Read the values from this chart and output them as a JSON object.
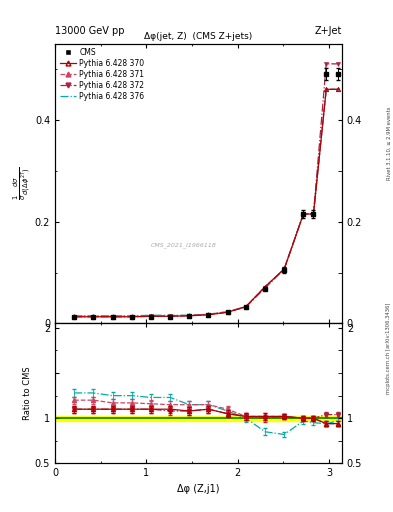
{
  "title_top_left": "13000 GeV pp",
  "title_top_right": "Z+Jet",
  "plot_title": "Δφ(jet, Z)  (CMS Z+jets)",
  "xlabel": "Δφ (Z,j1)",
  "ylabel_ratio": "Ratio to CMS",
  "watermark": "CMS_2021_I1966118",
  "right_label": "Rivet 3.1.10, ≥ 2.9M events",
  "right_label2": "mcplots.cern.ch [arXiv:1306.3436]",
  "cms_x": [
    0.21,
    0.42,
    0.63,
    0.84,
    1.05,
    1.26,
    1.47,
    1.68,
    1.89,
    2.09,
    2.3,
    2.51,
    2.72,
    2.83,
    2.97,
    3.1
  ],
  "cms_y": [
    0.012,
    0.012,
    0.012,
    0.012,
    0.013,
    0.013,
    0.014,
    0.016,
    0.022,
    0.033,
    0.068,
    0.105,
    0.215,
    0.215,
    0.49,
    0.49
  ],
  "cms_yerr": [
    0.0005,
    0.0005,
    0.0005,
    0.0005,
    0.0005,
    0.0005,
    0.0005,
    0.001,
    0.001,
    0.002,
    0.003,
    0.005,
    0.008,
    0.008,
    0.012,
    0.012
  ],
  "py370_y": [
    0.013,
    0.013,
    0.013,
    0.013,
    0.014,
    0.014,
    0.015,
    0.017,
    0.022,
    0.033,
    0.072,
    0.107,
    0.215,
    0.215,
    0.46,
    0.46
  ],
  "py371_y": [
    0.014,
    0.014,
    0.014,
    0.014,
    0.015,
    0.015,
    0.016,
    0.018,
    0.023,
    0.033,
    0.072,
    0.107,
    0.215,
    0.215,
    0.46,
    0.46
  ],
  "py372_y": [
    0.013,
    0.013,
    0.013,
    0.013,
    0.014,
    0.014,
    0.015,
    0.017,
    0.022,
    0.033,
    0.07,
    0.107,
    0.215,
    0.215,
    0.51,
    0.51
  ],
  "py376_y": [
    0.015,
    0.015,
    0.015,
    0.015,
    0.016,
    0.016,
    0.016,
    0.018,
    0.023,
    0.032,
    0.07,
    0.107,
    0.215,
    0.215,
    0.46,
    0.46
  ],
  "ratio_370": [
    1.1,
    1.1,
    1.1,
    1.1,
    1.1,
    1.1,
    1.08,
    1.1,
    1.05,
    1.02,
    1.02,
    1.02,
    1.0,
    1.0,
    0.94,
    0.94
  ],
  "ratio_371": [
    1.2,
    1.2,
    1.17,
    1.17,
    1.16,
    1.15,
    1.15,
    1.15,
    1.1,
    1.02,
    1.02,
    1.02,
    1.0,
    1.0,
    0.94,
    0.94
  ],
  "ratio_372": [
    1.1,
    1.1,
    1.1,
    1.1,
    1.1,
    1.08,
    1.08,
    1.1,
    1.05,
    1.02,
    1.0,
    1.02,
    1.0,
    1.0,
    1.04,
    1.04
  ],
  "ratio_376": [
    1.28,
    1.28,
    1.25,
    1.25,
    1.23,
    1.23,
    1.15,
    1.15,
    1.08,
    1.0,
    0.85,
    0.82,
    0.97,
    0.95,
    0.94,
    0.97
  ],
  "ratio_err_370": [
    0.04,
    0.04,
    0.04,
    0.04,
    0.04,
    0.04,
    0.04,
    0.04,
    0.04,
    0.04,
    0.04,
    0.03,
    0.03,
    0.03,
    0.03,
    0.03
  ],
  "ratio_err_371": [
    0.04,
    0.04,
    0.04,
    0.04,
    0.04,
    0.04,
    0.04,
    0.04,
    0.04,
    0.04,
    0.04,
    0.03,
    0.03,
    0.03,
    0.03,
    0.03
  ],
  "ratio_err_372": [
    0.04,
    0.04,
    0.04,
    0.04,
    0.04,
    0.04,
    0.04,
    0.04,
    0.04,
    0.04,
    0.04,
    0.03,
    0.03,
    0.03,
    0.03,
    0.03
  ],
  "ratio_err_376": [
    0.04,
    0.04,
    0.04,
    0.04,
    0.04,
    0.04,
    0.04,
    0.04,
    0.04,
    0.04,
    0.04,
    0.03,
    0.03,
    0.03,
    0.03,
    0.03
  ],
  "color_370": "#b00000",
  "color_371": "#cc4466",
  "color_372": "#aa2244",
  "color_376": "#00aaaa",
  "color_cms": "#000000",
  "xlim": [
    0,
    3.14159
  ],
  "ylim_main_top": 0.55,
  "ylim_ratio_lo": 0.5,
  "ylim_ratio_hi": 2.05
}
